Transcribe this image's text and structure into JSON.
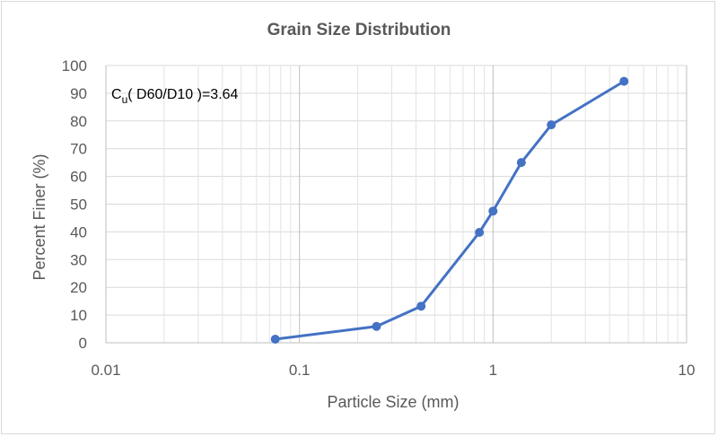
{
  "chart_data": {
    "type": "scatter",
    "title": "Grain Size Distribution",
    "xlabel": "Particle Size (mm)",
    "ylabel": "Percent Finer (%)",
    "x_scale": "log",
    "xlim": [
      0.01,
      10
    ],
    "ylim": [
      0,
      100
    ],
    "x_ticks": [
      "0.01",
      "0.1",
      "1",
      "10"
    ],
    "y_ticks": [
      "0",
      "10",
      "20",
      "30",
      "40",
      "50",
      "60",
      "70",
      "80",
      "90",
      "100"
    ],
    "grid": true,
    "legend": "none",
    "annotation": {
      "prefix": "C",
      "subscript": "u",
      "suffix": "( D60/D10 )=3.64"
    },
    "series": [
      {
        "color": "#4472c4",
        "x": [
          0.075,
          0.25,
          0.425,
          0.85,
          1.0,
          1.4,
          2.0,
          4.75
        ],
        "y": [
          1.3,
          5.9,
          13.2,
          39.8,
          47.5,
          65.0,
          78.6,
          94.3
        ]
      }
    ]
  }
}
